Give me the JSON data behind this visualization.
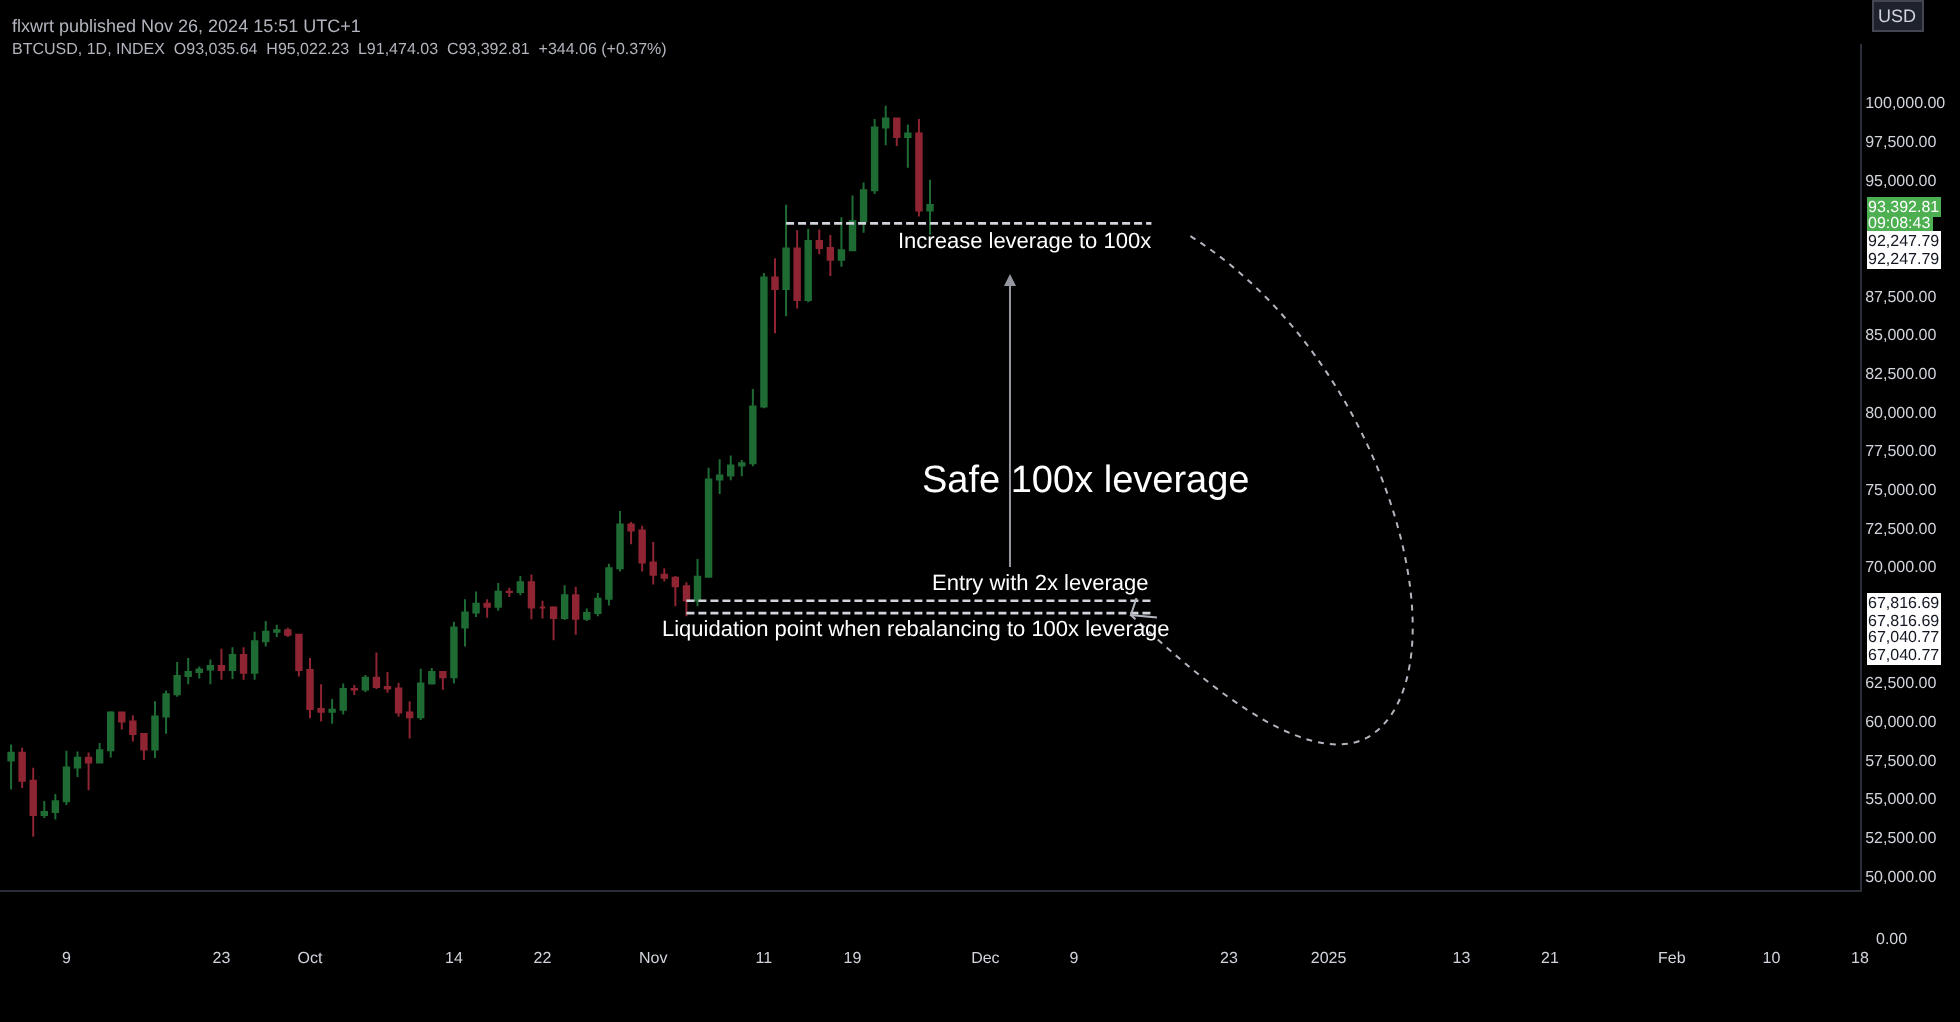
{
  "chart_data": {
    "type": "candlestick",
    "title": "flxwrt published Nov 26, 2024 15:51 UTC+1",
    "subtitle": "BTCUSD, 1D, INDEX  O93,035.64  H95,022.23  L91,474.03  C93,392.81  +344.06 (+0.37%)",
    "colors": [
      "#1e6b34",
      "#8f2433",
      "#8f2433",
      "#1e6b34",
      "#1e6b34",
      "#1e6b34",
      "#1e6b34",
      "#8f2433",
      "#1e6b34",
      "#1e6b34",
      "#8f2433",
      "#8f2433",
      "#8f2433",
      "#1e6b34",
      "#1e6b34",
      "#1e6b34",
      "#1e6b34",
      "#1e6b34",
      "#1e6b34",
      "#8f2433",
      "#1e6b34",
      "#8f2433",
      "#1e6b34",
      "#1e6b34",
      "#1e6b34",
      "#8f2433",
      "#8f2433",
      "#8f2433",
      "#8f2433",
      "#1e6b34",
      "#1e6b34",
      "#8f2433",
      "#1e6b34",
      "#8f2433",
      "#8f2433",
      "#8f2433",
      "#8f2433",
      "#1e6b34",
      "#1e6b34",
      "#8f2433",
      "#1e6b34",
      "#1e6b34",
      "#1e6b34",
      "#8f2433",
      "#1e6b34",
      "#8f2433",
      "#1e6b34",
      "#8f2433",
      "#8f2433",
      "#8f2433",
      "#1e6b34",
      "#8f2433",
      "#1e6b34",
      "#1e6b34",
      "#1e6b34",
      "#1e6b34",
      "#8f2433",
      "#8f2433",
      "#8f2433",
      "#8f2433",
      "#8f2433",
      "#8f2433",
      "#1e6b34",
      "#1e6b34",
      "#1e6b34",
      "#1e6b34",
      "#1e6b34",
      "#1e6b34",
      "#1e6b34",
      "#8f2433",
      "#1e6b34",
      "#8f2433",
      "#1e6b34",
      "#8f2433",
      "#8f2433",
      "#1e6b34",
      "#1e6b34",
      "#1e6b34",
      "#1e6b34",
      "#1e6b34",
      "#8f2433",
      "#1e6b34",
      "#8f2433",
      "#1e6b34"
    ],
    "x": [
      "2024-09-04",
      "2024-09-05",
      "2024-09-06",
      "2024-09-07",
      "2024-09-08",
      "2024-09-09",
      "2024-09-10",
      "2024-09-11",
      "2024-09-12",
      "2024-09-13",
      "2024-09-14",
      "2024-09-15",
      "2024-09-16",
      "2024-09-17",
      "2024-09-18",
      "2024-09-19",
      "2024-09-20",
      "2024-09-21",
      "2024-09-22",
      "2024-09-23",
      "2024-09-24",
      "2024-09-25",
      "2024-09-26",
      "2024-09-27",
      "2024-09-28",
      "2024-09-29",
      "2024-09-30",
      "2024-10-01",
      "2024-10-02",
      "2024-10-03",
      "2024-10-04",
      "2024-10-05",
      "2024-10-06",
      "2024-10-07",
      "2024-10-08",
      "2024-10-09",
      "2024-10-10",
      "2024-10-11",
      "2024-10-12",
      "2024-10-13",
      "2024-10-14",
      "2024-10-15",
      "2024-10-16",
      "2024-10-17",
      "2024-10-18",
      "2024-10-19",
      "2024-10-20",
      "2024-10-21",
      "2024-10-22",
      "2024-10-23",
      "2024-10-24",
      "2024-10-25",
      "2024-10-26",
      "2024-10-27",
      "2024-10-28",
      "2024-10-29",
      "2024-10-30",
      "2024-10-31",
      "2024-11-01",
      "2024-11-02",
      "2024-11-03",
      "2024-11-04",
      "2024-11-05",
      "2024-11-06",
      "2024-11-07",
      "2024-11-08",
      "2024-11-09",
      "2024-11-10",
      "2024-11-11",
      "2024-11-12",
      "2024-11-13",
      "2024-11-14",
      "2024-11-15",
      "2024-11-16",
      "2024-11-17",
      "2024-11-18",
      "2024-11-19",
      "2024-11-20",
      "2024-11-21",
      "2024-11-22",
      "2024-11-23",
      "2024-11-24",
      "2024-11-25",
      "2024-11-26"
    ],
    "ohlc": [
      [
        57480,
        58500,
        55600,
        57970
      ],
      [
        57970,
        58300,
        55700,
        56160
      ],
      [
        56160,
        57000,
        52550,
        53950
      ],
      [
        53950,
        54850,
        53750,
        54140
      ],
      [
        54140,
        55300,
        53650,
        54840
      ],
      [
        54840,
        58100,
        54600,
        57020
      ],
      [
        57020,
        58050,
        56400,
        57650
      ],
      [
        57650,
        57990,
        55550,
        57340
      ],
      [
        57340,
        58600,
        57330,
        58130
      ],
      [
        58130,
        60650,
        57660,
        60570
      ],
      [
        60570,
        60600,
        59470,
        60000
      ],
      [
        60000,
        60400,
        58700,
        59180
      ],
      [
        59180,
        59200,
        57500,
        58190
      ],
      [
        58190,
        61300,
        57630,
        60310
      ],
      [
        60310,
        62000,
        59200,
        61760
      ],
      [
        61760,
        63850,
        61600,
        62940
      ],
      [
        62940,
        64100,
        62400,
        63190
      ],
      [
        63190,
        63550,
        62780,
        63350
      ],
      [
        63350,
        64000,
        62400,
        63580
      ],
      [
        63580,
        64700,
        62700,
        63330
      ],
      [
        63330,
        64800,
        62750,
        64300
      ],
      [
        64300,
        64800,
        62700,
        63140
      ],
      [
        63140,
        65800,
        62700,
        65180
      ],
      [
        65180,
        66500,
        64850,
        65790
      ],
      [
        65790,
        66250,
        65450,
        65890
      ],
      [
        65890,
        66050,
        65450,
        65600
      ],
      [
        65600,
        65600,
        62900,
        63330
      ],
      [
        63330,
        64100,
        60200,
        60800
      ],
      [
        60800,
        62400,
        60000,
        60630
      ],
      [
        60630,
        61450,
        59850,
        60750
      ],
      [
        60750,
        62450,
        60450,
        62090
      ],
      [
        62090,
        62350,
        61700,
        62060
      ],
      [
        62060,
        63000,
        61900,
        62820
      ],
      [
        62820,
        64450,
        62100,
        62220
      ],
      [
        62220,
        63200,
        61850,
        62130
      ],
      [
        62130,
        62500,
        60300,
        60580
      ],
      [
        60580,
        61300,
        58900,
        60270
      ],
      [
        60270,
        63400,
        60100,
        62450
      ],
      [
        62450,
        63450,
        62450,
        63190
      ],
      [
        63190,
        63250,
        62050,
        62850
      ],
      [
        62850,
        66450,
        62450,
        66080
      ],
      [
        66080,
        67900,
        64850,
        67040
      ],
      [
        67040,
        68400,
        66750,
        67610
      ],
      [
        67610,
        67900,
        66700,
        67410
      ],
      [
        67410,
        68950,
        67150,
        68380
      ],
      [
        68380,
        68650,
        68050,
        68360
      ],
      [
        68360,
        69400,
        68150,
        69000
      ],
      [
        69000,
        69500,
        66600,
        67370
      ],
      [
        67370,
        67800,
        66650,
        67370
      ],
      [
        67370,
        67450,
        65250,
        66680
      ],
      [
        66680,
        68800,
        66550,
        68160
      ],
      [
        68160,
        68700,
        65600,
        66640
      ],
      [
        66640,
        67300,
        66500,
        67010
      ],
      [
        67010,
        68300,
        66800,
        67930
      ],
      [
        67930,
        70200,
        67500,
        69900
      ],
      [
        69900,
        73600,
        69700,
        72730
      ],
      [
        72730,
        72900,
        71450,
        72340
      ],
      [
        72340,
        72650,
        69700,
        70280
      ],
      [
        70280,
        71600,
        68850,
        69480
      ],
      [
        69480,
        69900,
        69050,
        69290
      ],
      [
        69290,
        69400,
        67450,
        68740
      ],
      [
        68740,
        69000,
        66800,
        67810
      ],
      [
        67810,
        70500,
        67450,
        69360
      ],
      [
        69360,
        76400,
        69350,
        75640
      ],
      [
        75640,
        76950,
        74700,
        75900
      ],
      [
        75900,
        77200,
        75600,
        76540
      ],
      [
        76540,
        76900,
        75850,
        76690
      ],
      [
        76690,
        81500,
        76500,
        80370
      ],
      [
        80370,
        89000,
        80250,
        88700
      ],
      [
        88700,
        89950,
        85100,
        87960
      ],
      [
        87960,
        93400,
        86200,
        90580
      ],
      [
        90580,
        91750,
        86700,
        87250
      ],
      [
        87250,
        91850,
        87100,
        91070
      ],
      [
        91070,
        91800,
        90200,
        90610
      ],
      [
        90610,
        91450,
        88800,
        89850
      ],
      [
        89850,
        92600,
        89400,
        90470
      ],
      [
        90470,
        94000,
        90450,
        92340
      ],
      [
        92340,
        94850,
        91600,
        94340
      ],
      [
        94340,
        98950,
        94100,
        98400
      ],
      [
        98400,
        99800,
        97250,
        98980
      ],
      [
        98980,
        99000,
        97200,
        97790
      ],
      [
        97790,
        98600,
        95800,
        98010
      ],
      [
        98010,
        98950,
        92650,
        93035.64
      ],
      [
        93035.64,
        95022.23,
        91474.03,
        93392.81
      ]
    ],
    "series": [
      {
        "type": "line",
        "x": [
          "2024-11-13",
          "2024-12-16"
        ],
        "values": [
          92200,
          92200
        ],
        "color": "#d1d4dc",
        "line_style": "dashed"
      },
      {
        "type": "line",
        "x": [
          "2024-11-04",
          "2024-12-16"
        ],
        "values": [
          67800,
          67800
        ],
        "color": "#d1d4dc",
        "line_style": "dashed"
      },
      {
        "type": "line",
        "x": [
          "2024-11-04",
          "2024-12-16"
        ],
        "values": [
          67000,
          67000
        ],
        "color": "#d1d4dc",
        "line_style": "dashed"
      }
    ],
    "annotations": [
      "Increase leverage to 100x",
      "Entry with 2x leverage",
      "Liquidation point when rebalancing to 100x leverage",
      "Safe 100x leverage",
      "93,392.81",
      "09:08:43",
      "92,247.79",
      "92,247.79",
      "67,816.69",
      "67,816.69",
      "67,040.77",
      "67,040.77",
      "USD",
      "0.00"
    ],
    "xlim": [
      "2024-09-03",
      "2025-02-18"
    ],
    "xticks": [
      {
        "value": "2024-09-09",
        "label": "9"
      },
      {
        "value": "2024-09-23",
        "label": "23"
      },
      {
        "value": "2024-10-01",
        "label": "Oct"
      },
      {
        "value": "2024-10-14",
        "label": "14"
      },
      {
        "value": "2024-10-22",
        "label": "22"
      },
      {
        "value": "2024-11-01",
        "label": "Nov"
      },
      {
        "value": "2024-11-11",
        "label": "11"
      },
      {
        "value": "2024-11-19",
        "label": "19"
      },
      {
        "value": "2024-12-01",
        "label": "Dec"
      },
      {
        "value": "2024-12-09",
        "label": "9"
      },
      {
        "value": "2024-12-23",
        "label": "23"
      },
      {
        "value": "2025-01-01",
        "label": "2025"
      },
      {
        "value": "2025-01-13",
        "label": "13"
      },
      {
        "value": "2025-01-21",
        "label": "21"
      },
      {
        "value": "2025-02-01",
        "label": "Feb"
      },
      {
        "value": "2025-02-10",
        "label": "10"
      },
      {
        "value": "2025-02-18",
        "label": "18"
      }
    ],
    "ylim": [
      49100,
      103800
    ],
    "yticks": [
      {
        "value": 50000,
        "label": "50,000.00"
      },
      {
        "value": 52500,
        "label": "52,500.00"
      },
      {
        "value": 55000,
        "label": "55,000.00"
      },
      {
        "value": 57500,
        "label": "57,500.00"
      },
      {
        "value": 60000,
        "label": "60,000.00"
      },
      {
        "value": 62500,
        "label": "62,500.00"
      },
      {
        "value": 70000,
        "label": "70,000.00"
      },
      {
        "value": 72500,
        "label": "72,500.00"
      },
      {
        "value": 75000,
        "label": "75,000.00"
      },
      {
        "value": 77500,
        "label": "77,500.00"
      },
      {
        "value": 80000,
        "label": "80,000.00"
      },
      {
        "value": 82500,
        "label": "82,500.00"
      },
      {
        "value": 85000,
        "label": "85,000.00"
      },
      {
        "value": 87500,
        "label": "87,500.00"
      },
      {
        "value": 95000,
        "label": "95,000.00"
      },
      {
        "value": 97500,
        "label": "97,500.00"
      },
      {
        "value": 100000,
        "label": "100,000.00"
      }
    ],
    "grid": false
  }
}
